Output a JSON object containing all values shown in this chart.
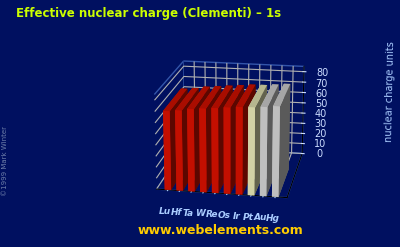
{
  "title": "Effective nuclear charge (Clementi) – 1s",
  "ylabel": "nuclear charge units",
  "elements": [
    "Lu",
    "Hf",
    "Ta",
    "W",
    "Re",
    "Os",
    "Ir",
    "Pt",
    "Au",
    "Hg"
  ],
  "values": [
    71.0,
    72.0,
    73.85,
    74.79,
    75.83,
    76.82,
    77.84,
    78.0,
    79.0,
    80.0
  ],
  "bar_colors": [
    "#dd1100",
    "#dd1100",
    "#dd1100",
    "#dd1100",
    "#dd1100",
    "#dd1100",
    "#dd1100",
    "#eeeebb",
    "#d8d8d8",
    "#d8d8d8"
  ],
  "background_color": "#001060",
  "grid_color": "#3355aa",
  "title_color": "#ccff00",
  "axis_label_color": "#aaccff",
  "tick_label_color": "#ccddff",
  "element_label_color": "#aaccff",
  "watermark": "www.webelements.com",
  "watermark_color": "#ffcc00",
  "copyright": "©1999 Mark Winter",
  "ylim": [
    0,
    85
  ],
  "yticks": [
    0,
    10,
    20,
    30,
    40,
    50,
    60,
    70,
    80
  ]
}
